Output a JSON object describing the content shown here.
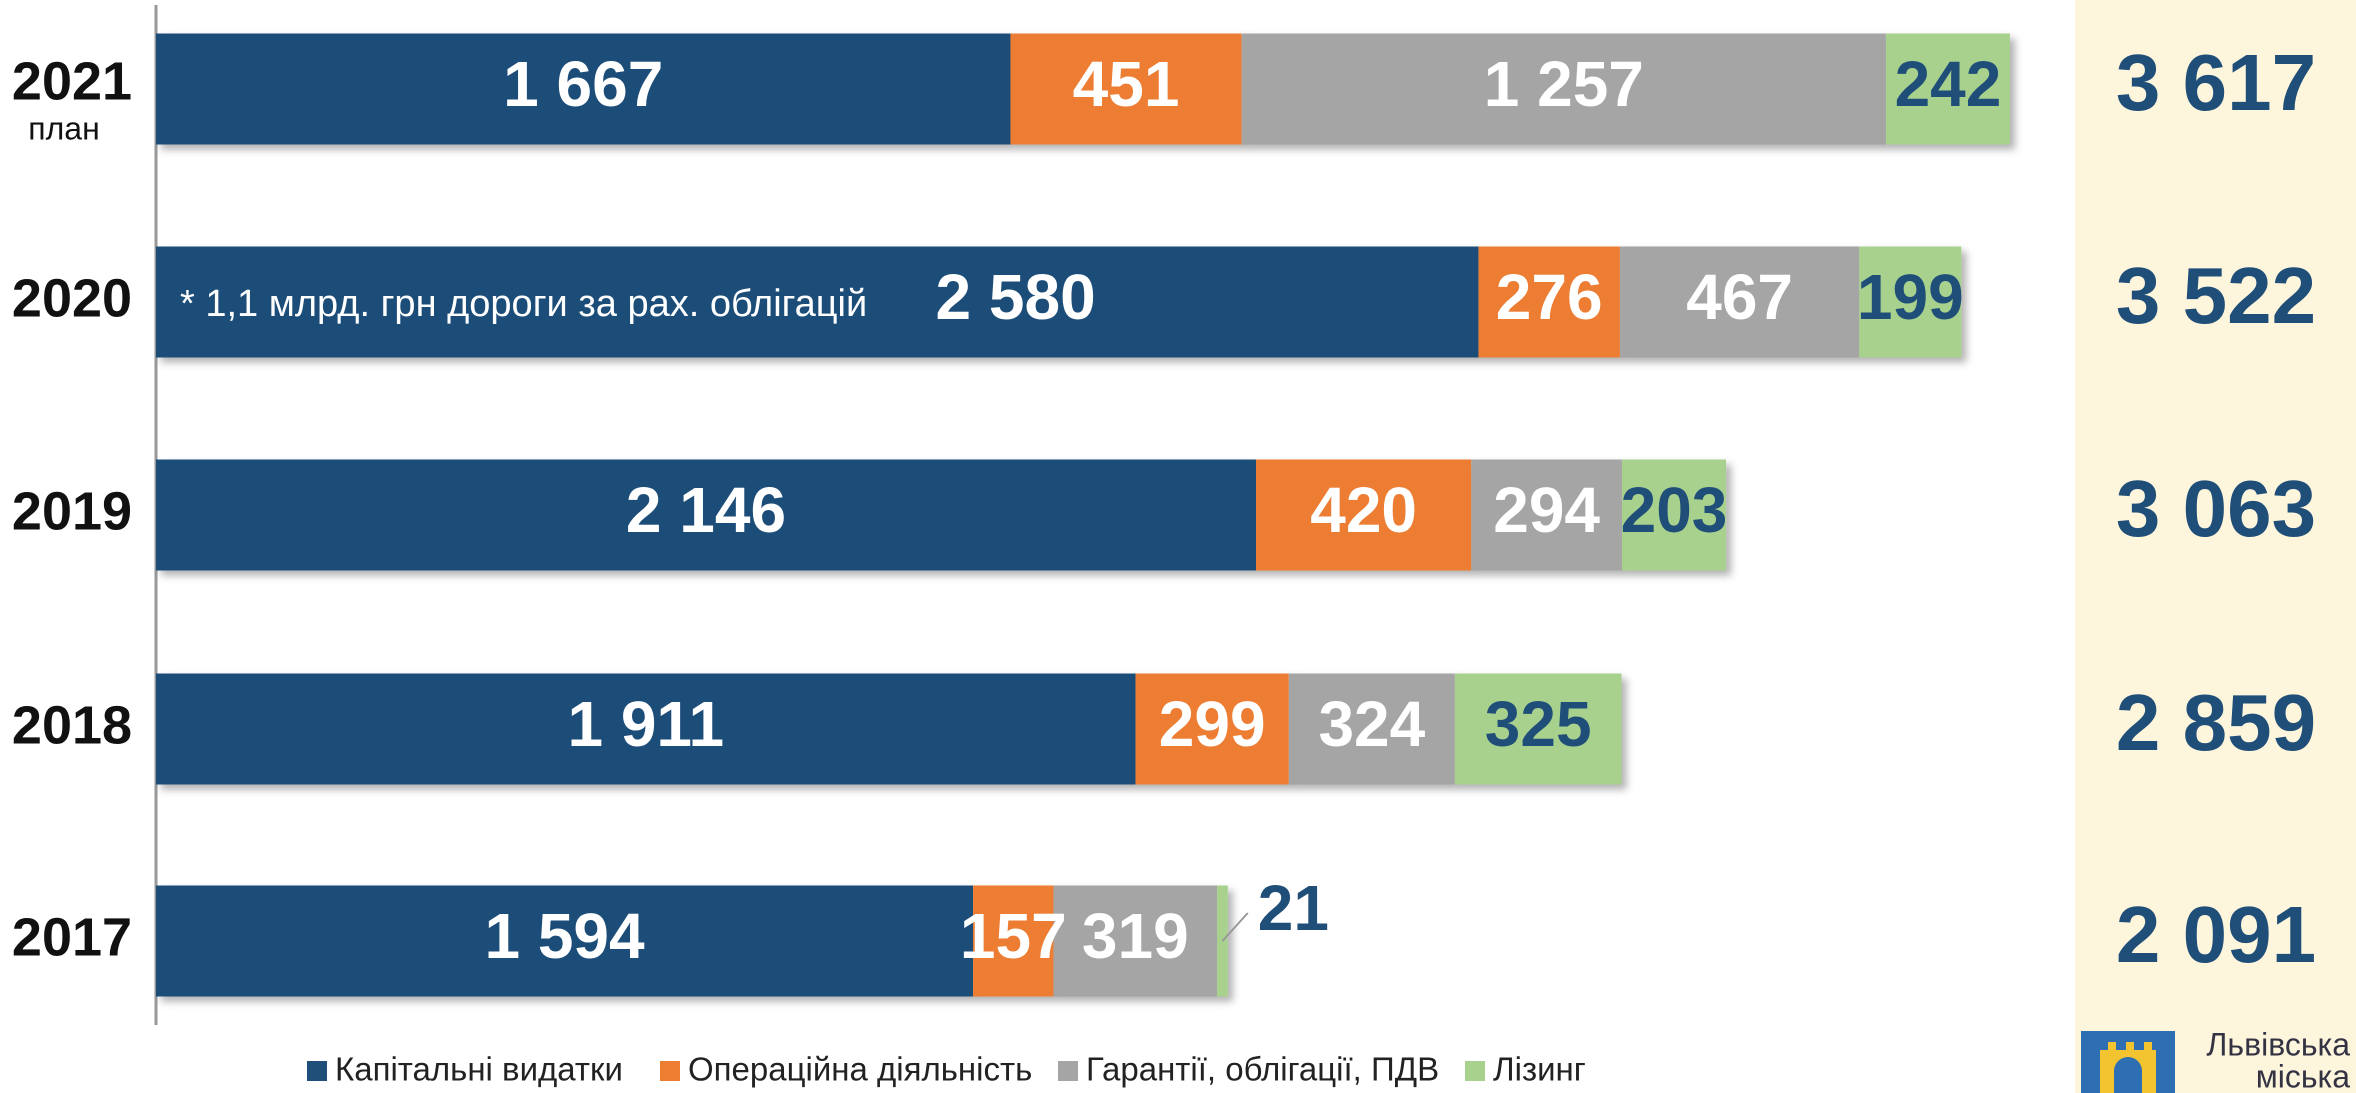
{
  "chart_data": {
    "type": "stacked_barh",
    "categories": [
      "2021",
      "2020",
      "2019",
      "2018",
      "2017"
    ],
    "sublabel": "план",
    "annotation": "* 1,1 млрд. грн дороги за рах. облігацій",
    "series": [
      {
        "name": "Капітальні видатки",
        "color": "#1f4e79",
        "values": [
          1667,
          2580,
          2146,
          1911,
          1594
        ],
        "value_labels": [
          "1 667",
          "2 580",
          "2 146",
          "1 911",
          "1 594"
        ]
      },
      {
        "name": "Операційна діяльність",
        "color": "#ed7d31",
        "values": [
          451,
          276,
          420,
          299,
          157
        ],
        "value_labels": [
          "451",
          "276",
          "420",
          "299",
          "157"
        ]
      },
      {
        "name": "Гарантії, облігації, ПДВ",
        "color": "#a5a5a5",
        "values": [
          1257,
          467,
          294,
          324,
          319
        ],
        "value_labels": [
          "1 257",
          "467",
          "294",
          "324",
          "319"
        ]
      },
      {
        "name": "Лізинг",
        "color": "#a9d18e",
        "values": [
          242,
          199,
          203,
          325,
          21
        ],
        "value_labels": [
          "242",
          "199",
          "203",
          "325",
          "21"
        ]
      }
    ],
    "totals": [
      3617,
      3522,
      3063,
      2859,
      2091
    ],
    "total_labels": [
      "3 617",
      "3 522",
      "3 063",
      "2 859",
      "2 091"
    ],
    "legend": "bottom"
  },
  "logo": {
    "line1": "Львівська",
    "line2": "міська"
  }
}
